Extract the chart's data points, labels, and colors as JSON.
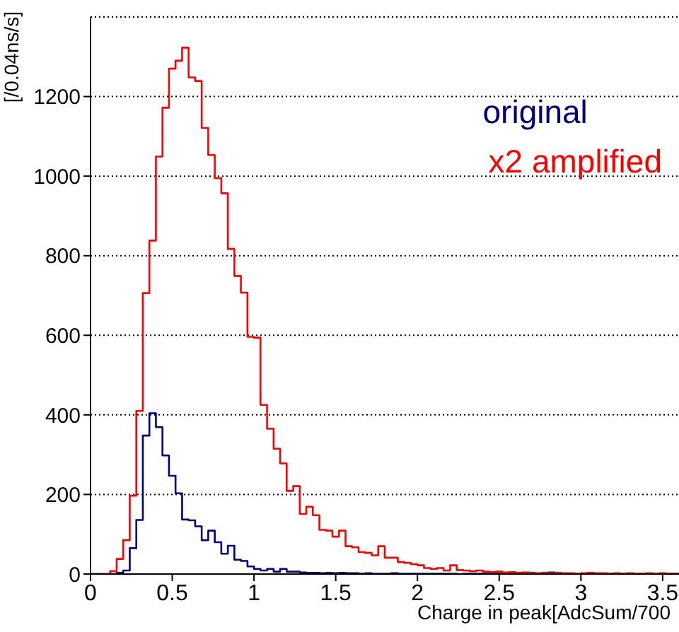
{
  "chart_data": {
    "type": "histogram",
    "xlabel": "Charge in peak[AdcSum/700",
    "ylabel": "[/0.04ns/s]",
    "bins": [
      0,
      0.04,
      0.08,
      0.12,
      0.16,
      0.2,
      0.24,
      0.28,
      0.32,
      0.36,
      0.4,
      0.44,
      0.48,
      0.52,
      0.56,
      0.6,
      0.64,
      0.68,
      0.72,
      0.76,
      0.8,
      0.84,
      0.88,
      0.92,
      0.96,
      1,
      1.04,
      1.08,
      1.12,
      1.16,
      1.2,
      1.24,
      1.28,
      1.32,
      1.36,
      1.4,
      1.44,
      1.48,
      1.52,
      1.56,
      1.6,
      1.64,
      1.68,
      1.72,
      1.76,
      1.8,
      1.84,
      1.88,
      1.92,
      1.96,
      2,
      2.04,
      2.08,
      2.12,
      2.16,
      2.2,
      2.24,
      2.28,
      2.32,
      2.36,
      2.4,
      2.44,
      2.48,
      2.52,
      2.56,
      2.6,
      2.64,
      2.68,
      2.72,
      2.76,
      2.8,
      2.84,
      2.88,
      2.92,
      2.96,
      3,
      3.04,
      3.08,
      3.12,
      3.16,
      3.2,
      3.24,
      3.28,
      3.32,
      3.36,
      3.4,
      3.44,
      3.48,
      3.52,
      3.56,
      3.6
    ],
    "series": [
      {
        "name": "original",
        "color": "#00007f",
        "values": [
          0,
          0,
          0,
          0,
          3,
          9,
          65,
          136,
          348,
          404,
          369,
          298,
          247,
          203,
          137,
          135,
          120,
          85,
          109,
          80,
          51,
          71,
          36,
          33,
          19,
          13,
          9,
          13,
          6,
          13,
          6,
          6,
          4,
          3,
          3,
          2,
          3,
          2,
          3,
          2,
          2,
          1,
          2,
          1,
          1,
          1,
          2,
          1,
          1,
          1,
          1,
          1,
          1,
          1,
          1,
          1,
          0,
          1,
          1,
          1,
          1,
          1,
          1,
          1,
          1,
          1,
          1,
          2,
          1,
          1,
          4,
          1,
          1,
          1,
          1,
          0,
          1,
          1,
          1,
          1,
          1,
          1,
          1,
          1,
          1,
          0,
          1,
          1,
          1,
          1
        ]
      },
      {
        "name": "x2 amplified",
        "color": "#ff0000",
        "values": [
          0,
          0,
          0,
          7,
          38,
          85,
          197,
          410,
          706,
          838,
          1049,
          1172,
          1270,
          1290,
          1323,
          1248,
          1239,
          1121,
          1053,
          995,
          957,
          817,
          749,
          707,
          596,
          594,
          425,
          365,
          315,
          278,
          209,
          221,
          151,
          169,
          148,
          111,
          109,
          94,
          109,
          70,
          67,
          55,
          53,
          47,
          70,
          41,
          41,
          30,
          28,
          25,
          22,
          15,
          13,
          15,
          9,
          22,
          10,
          9,
          7,
          9,
          6,
          5,
          6,
          4,
          5,
          3,
          4,
          3,
          2,
          3,
          2,
          3,
          2,
          2,
          1,
          2,
          3,
          2,
          2,
          1,
          2,
          1,
          2,
          1,
          1,
          2,
          1,
          2,
          1,
          1
        ]
      }
    ],
    "xlim": [
      0,
      3.6
    ],
    "xticks": [
      0,
      0.5,
      1,
      1.5,
      2,
      2.5,
      3,
      3.5
    ],
    "ylim": [
      0,
      1400
    ],
    "yticks": [
      0,
      200,
      400,
      600,
      800,
      1000,
      1200
    ],
    "grid": "y",
    "legend": "top right"
  }
}
